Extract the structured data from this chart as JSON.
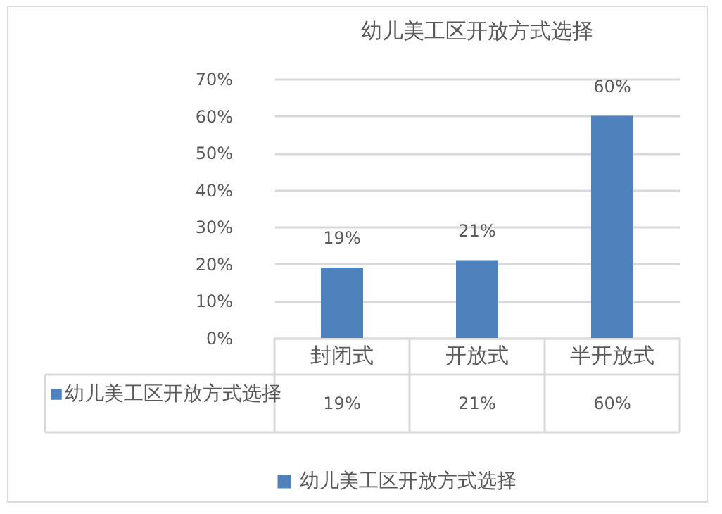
{
  "chart_data": {
    "type": "bar",
    "title": "幼儿美工区开放方式选择",
    "categories": [
      "封闭式",
      "开放式",
      "半开放式"
    ],
    "series": [
      {
        "name": "幼儿美工区开放方式选择",
        "color": "#4f81bd",
        "values": [
          19,
          21,
          60
        ],
        "value_labels": [
          "19%",
          "21%",
          "60%"
        ]
      }
    ],
    "ylim": [
      0,
      70
    ],
    "yticks": [
      {
        "value": 0,
        "label": "0%"
      },
      {
        "value": 10,
        "label": "10%"
      },
      {
        "value": 20,
        "label": "20%"
      },
      {
        "value": 30,
        "label": "30%"
      },
      {
        "value": 40,
        "label": "40%"
      },
      {
        "value": 50,
        "label": "50%"
      },
      {
        "value": 60,
        "label": "60%"
      },
      {
        "value": 70,
        "label": "70%"
      }
    ],
    "grid": "y",
    "legend": "bottom"
  }
}
